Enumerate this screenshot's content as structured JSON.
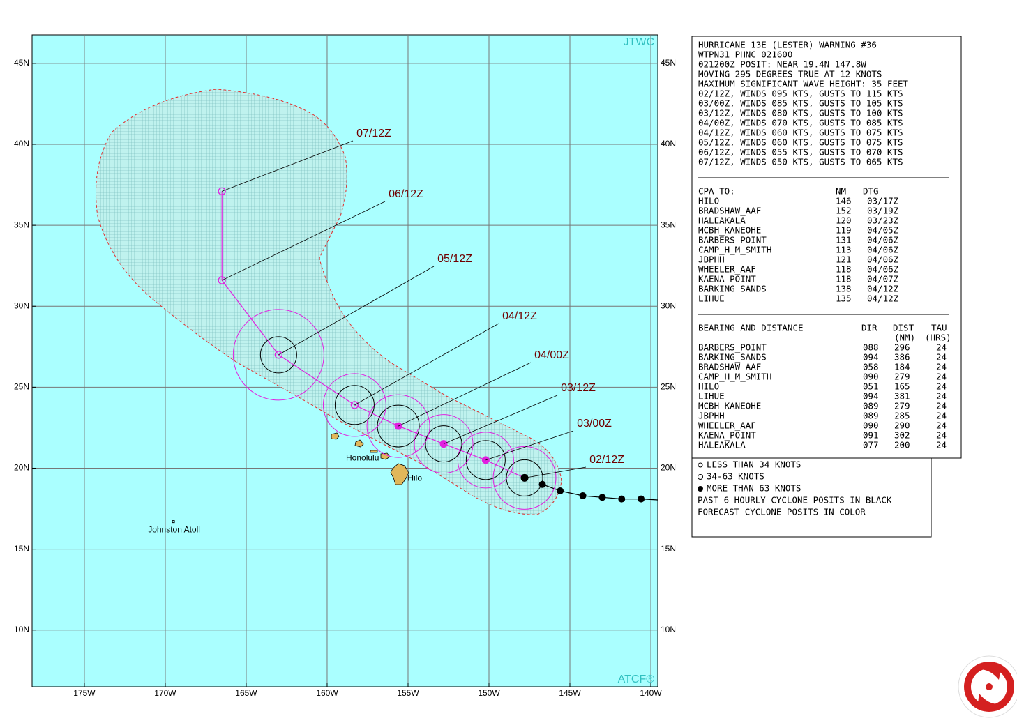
{
  "map": {
    "source": "JTWC",
    "credit": "ATCF®",
    "lat_range": [
      6.5,
      46.76
    ],
    "lon_range": [
      178.23,
      139.57
    ],
    "lat_ticks": [
      {
        "value": 45,
        "label": "45N"
      },
      {
        "value": 40,
        "label": "40N"
      },
      {
        "value": 35,
        "label": "35N"
      },
      {
        "value": 30,
        "label": "30N"
      },
      {
        "value": 25,
        "label": "25N"
      },
      {
        "value": 20,
        "label": "20N"
      },
      {
        "value": 15,
        "label": "15N"
      },
      {
        "value": 10,
        "label": "10N"
      }
    ],
    "lon_ticks": [
      {
        "value": 175,
        "label": "175W"
      },
      {
        "value": 170,
        "label": "170W"
      },
      {
        "value": 165,
        "label": "165W"
      },
      {
        "value": 160,
        "label": "160W"
      },
      {
        "value": 155,
        "label": "155W"
      },
      {
        "value": 150,
        "label": "150W"
      },
      {
        "value": 145,
        "label": "145W"
      },
      {
        "value": 140,
        "label": "140W"
      }
    ],
    "places": [
      {
        "name": "Honolulu",
        "lat": 21.3,
        "lon": 157.9
      },
      {
        "name": "Hilo",
        "lat": 19.7,
        "lon": 155.1
      },
      {
        "name": "Johnston Atoll",
        "lat": 16.7,
        "lon": 169.5
      }
    ],
    "forecast": [
      {
        "label": "02/12Z",
        "lat": 19.4,
        "lon": 147.8
      },
      {
        "label": "03/00Z",
        "lat": 20.5,
        "lon": 150.2
      },
      {
        "label": "03/12Z",
        "lat": 21.5,
        "lon": 152.8
      },
      {
        "label": "04/00Z",
        "lat": 22.6,
        "lon": 155.6
      },
      {
        "label": "04/12Z",
        "lat": 23.9,
        "lon": 158.3
      },
      {
        "label": "05/12Z",
        "lat": 27.0,
        "lon": 163.0
      },
      {
        "label": "06/12Z",
        "lat": 31.6,
        "lon": 166.5
      },
      {
        "label": "07/12Z",
        "lat": 37.1,
        "lon": 166.5
      }
    ],
    "past": [
      {
        "lat": 19.0,
        "lon": 146.7
      },
      {
        "lat": 18.6,
        "lon": 145.6
      },
      {
        "lat": 18.3,
        "lon": 144.2
      },
      {
        "lat": 18.2,
        "lon": 143.0
      },
      {
        "lat": 18.1,
        "lon": 141.8
      },
      {
        "lat": 18.1,
        "lon": 140.6
      }
    ]
  },
  "warning": {
    "lines": [
      "HURRICANE 13E (LESTER) WARNING #36",
      "WTPN31 PHNC 021600",
      "021200Z POSIT: NEAR 19.4N 147.8W",
      "MOVING 295 DEGREES TRUE AT 12 KNOTS",
      "MAXIMUM SIGNIFICANT WAVE HEIGHT: 35 FEET",
      "02/12Z, WINDS 095 KTS, GUSTS TO 115 KTS",
      "03/00Z, WINDS 085 KTS, GUSTS TO 105 KTS",
      "03/12Z, WINDS 080 KTS, GUSTS TO 100 KTS",
      "04/00Z, WINDS 070 KTS, GUSTS TO 085 KTS",
      "04/12Z, WINDS 060 KTS, GUSTS TO 075 KTS",
      "05/12Z, WINDS 060 KTS, GUSTS TO 075 KTS",
      "06/12Z, WINDS 055 KTS, GUSTS TO 070 KTS",
      "07/12Z, WINDS 050 KTS, GUSTS TO 065 KTS"
    ]
  },
  "cpa": {
    "headers": [
      "CPA TO:",
      "NM",
      "DTG"
    ],
    "rows": [
      [
        "HILO",
        "146",
        "03/17Z"
      ],
      [
        "BRADSHAW_AAF",
        "152",
        "03/19Z"
      ],
      [
        "HALEAKALA",
        "120",
        "03/23Z"
      ],
      [
        "MCBH_KANEOHE",
        "119",
        "04/05Z"
      ],
      [
        "BARBERS_POINT",
        "131",
        "04/06Z"
      ],
      [
        "CAMP_H_M_SMITH",
        "113",
        "04/06Z"
      ],
      [
        "JBPHH",
        "121",
        "04/06Z"
      ],
      [
        "WHEELER_AAF",
        "118",
        "04/06Z"
      ],
      [
        "KAENA_POINT",
        "118",
        "04/07Z"
      ],
      [
        "BARKING_SANDS",
        "138",
        "04/12Z"
      ],
      [
        "LIHUE",
        "135",
        "04/12Z"
      ]
    ]
  },
  "bearing": {
    "headers": [
      "BEARING AND DISTANCE",
      "DIR",
      "DIST",
      "TAU"
    ],
    "subheaders": [
      "(NM)",
      "(HRS)"
    ],
    "rows": [
      [
        "BARBERS_POINT",
        "088",
        "296",
        "24"
      ],
      [
        "BARKING_SANDS",
        "094",
        "386",
        "24"
      ],
      [
        "BRADSHAW_AAF",
        "058",
        "184",
        "24"
      ],
      [
        "CAMP_H_M_SMITH",
        "090",
        "279",
        "24"
      ],
      [
        "HILO",
        "051",
        "165",
        "24"
      ],
      [
        "LIHUE",
        "094",
        "381",
        "24"
      ],
      [
        "MCBH_KANEOHE",
        "089",
        "279",
        "24"
      ],
      [
        "JBPHH",
        "089",
        "285",
        "24"
      ],
      [
        "WHEELER_AAF",
        "090",
        "290",
        "24"
      ],
      [
        "KAENA_POINT",
        "091",
        "302",
        "24"
      ],
      [
        "HALEAKALA",
        "077",
        "200",
        "24"
      ]
    ]
  },
  "legend": {
    "items": [
      "LESS THAN 34 KNOTS",
      "34-63 KNOTS",
      "MORE THAN 63 KNOTS"
    ],
    "notes": [
      "PAST 6 HOURLY CYCLONE POSITS IN BLACK",
      "FORECAST CYCLONE POSITS IN COLOR"
    ]
  }
}
